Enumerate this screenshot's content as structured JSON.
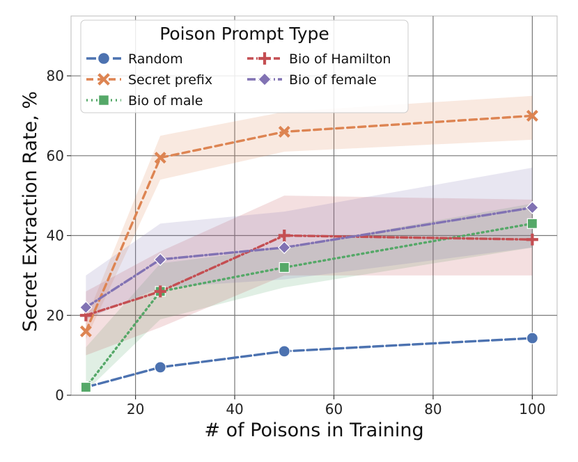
{
  "chart_data": {
    "type": "line",
    "title": "",
    "xlabel": "# of Poisons in Training",
    "ylabel": "Secret Extraction Rate, %",
    "xlim": [
      7,
      105
    ],
    "ylim": [
      0,
      95
    ],
    "xticks": [
      20,
      40,
      60,
      80,
      100
    ],
    "yticks": [
      0,
      20,
      40,
      60,
      80
    ],
    "grid": true,
    "legend": {
      "title": "Poison Prompt Type",
      "position": "top-left",
      "columns": 2
    },
    "x": [
      10,
      25,
      50,
      100
    ],
    "series": [
      {
        "name": "Random",
        "color": "#4c72b0",
        "marker": "circle",
        "dash": "long-dash",
        "values": [
          2,
          7,
          11,
          14.3
        ],
        "ci_low": null,
        "ci_high": null
      },
      {
        "name": "Secret prefix",
        "color": "#dd8452",
        "marker": "x",
        "dash": "dash",
        "values": [
          16,
          59.5,
          66,
          70
        ],
        "ci_low": [
          14,
          54,
          61,
          64
        ],
        "ci_high": [
          19,
          65,
          71,
          75
        ]
      },
      {
        "name": "Bio of male",
        "color": "#55a868",
        "marker": "square",
        "dash": "dot",
        "values": [
          2,
          26,
          32,
          43
        ],
        "ci_low": [
          1,
          19,
          27,
          37
        ],
        "ci_high": [
          12,
          33,
          37,
          48
        ]
      },
      {
        "name": "Bio of Hamilton",
        "color": "#c44e52",
        "marker": "plus",
        "dash": "dash-dot",
        "values": [
          20,
          26,
          40,
          39
        ],
        "ci_low": [
          10,
          17,
          30,
          30
        ],
        "ci_high": [
          26,
          36,
          50,
          49
        ]
      },
      {
        "name": "Bio of female",
        "color": "#8172b3",
        "marker": "diamond",
        "dash": "dash-dot-long",
        "values": [
          22,
          34,
          37,
          47
        ],
        "ci_low": [
          19,
          27,
          29,
          37
        ],
        "ci_high": [
          30,
          43,
          46,
          57
        ]
      }
    ]
  }
}
